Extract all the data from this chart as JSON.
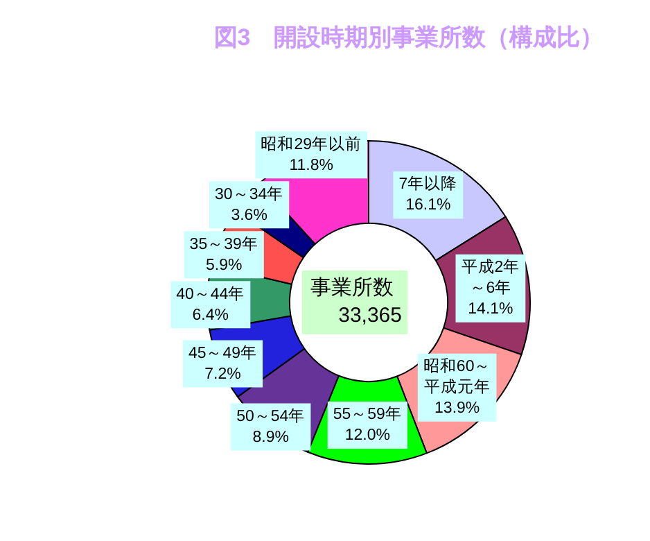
{
  "chart_data": {
    "type": "donut",
    "title": "図3　開設時期別事業所数（構成比）",
    "categories": [
      "7年以降",
      "平成2年～6年",
      "昭和60～平成元年",
      "55～59年",
      "50～54年",
      "45～49年",
      "40～44年",
      "35～39年",
      "30～34年",
      "昭和29年以前"
    ],
    "values": [
      16.1,
      14.1,
      13.9,
      12.0,
      8.9,
      7.2,
      6.4,
      5.9,
      3.6,
      11.8
    ],
    "value_labels": [
      "16.1%",
      "14.1%",
      "13.9%",
      "12.0%",
      "8.9%",
      "7.2%",
      "6.4%",
      "5.9%",
      "3.6%",
      "11.8%"
    ],
    "colors": [
      "#c8c8ff",
      "#993366",
      "#ff9999",
      "#00ff00",
      "#663399",
      "#2222dd",
      "#339966",
      "#ff5050",
      "#000080",
      "#ff33cc"
    ],
    "annotations": [
      "事業所数",
      "33,365"
    ],
    "legend": false
  }
}
